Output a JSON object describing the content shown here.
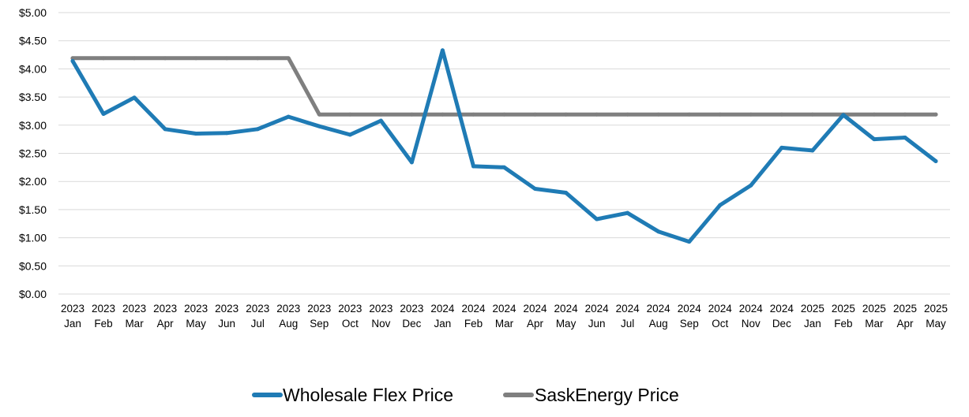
{
  "chart_data": {
    "type": "line",
    "title": "",
    "xlabel": "",
    "ylabel": "",
    "ylim": [
      0,
      5
    ],
    "y_ticks": [
      "$0.00",
      "$0.50",
      "$1.00",
      "$1.50",
      "$2.00",
      "$2.50",
      "$3.00",
      "$3.50",
      "$4.00",
      "$4.50",
      "$5.00"
    ],
    "y_tick_values": [
      0,
      0.5,
      1,
      1.5,
      2,
      2.5,
      3,
      3.5,
      4,
      4.5,
      5
    ],
    "grid": true,
    "legend_position": "bottom",
    "categories": [
      {
        "year": "2023",
        "month": "Jan"
      },
      {
        "year": "2023",
        "month": "Feb"
      },
      {
        "year": "2023",
        "month": "Mar"
      },
      {
        "year": "2023",
        "month": "Apr"
      },
      {
        "year": "2023",
        "month": "May"
      },
      {
        "year": "2023",
        "month": "Jun"
      },
      {
        "year": "2023",
        "month": "Jul"
      },
      {
        "year": "2023",
        "month": "Aug"
      },
      {
        "year": "2023",
        "month": "Sep"
      },
      {
        "year": "2023",
        "month": "Oct"
      },
      {
        "year": "2023",
        "month": "Nov"
      },
      {
        "year": "2023",
        "month": "Dec"
      },
      {
        "year": "2024",
        "month": "Jan"
      },
      {
        "year": "2024",
        "month": "Feb"
      },
      {
        "year": "2024",
        "month": "Mar"
      },
      {
        "year": "2024",
        "month": "Apr"
      },
      {
        "year": "2024",
        "month": "May"
      },
      {
        "year": "2024",
        "month": "Jun"
      },
      {
        "year": "2024",
        "month": "Jul"
      },
      {
        "year": "2024",
        "month": "Aug"
      },
      {
        "year": "2024",
        "month": "Sep"
      },
      {
        "year": "2024",
        "month": "Oct"
      },
      {
        "year": "2024",
        "month": "Nov"
      },
      {
        "year": "2024",
        "month": "Dec"
      },
      {
        "year": "2025",
        "month": "Jan"
      },
      {
        "year": "2025",
        "month": "Feb"
      },
      {
        "year": "2025",
        "month": "Mar"
      },
      {
        "year": "2025",
        "month": "Apr"
      },
      {
        "year": "2025",
        "month": "May"
      }
    ],
    "series": [
      {
        "name": "Wholesale Flex Price",
        "color": "#1f7bb5",
        "values": [
          4.14,
          3.2,
          3.49,
          2.93,
          2.85,
          2.86,
          2.93,
          3.15,
          2.98,
          2.83,
          3.08,
          2.34,
          4.33,
          2.27,
          2.25,
          1.87,
          1.8,
          1.33,
          1.44,
          1.11,
          0.93,
          1.58,
          1.93,
          2.6,
          2.55,
          3.18,
          2.75,
          2.78,
          2.36
        ]
      },
      {
        "name": "SaskEnergy Price",
        "color": "#7f7f7f",
        "values": [
          4.19,
          4.19,
          4.19,
          4.19,
          4.19,
          4.19,
          4.19,
          4.19,
          3.19,
          3.19,
          3.19,
          3.19,
          3.19,
          3.19,
          3.19,
          3.19,
          3.19,
          3.19,
          3.19,
          3.19,
          3.19,
          3.19,
          3.19,
          3.19,
          3.19,
          3.19,
          3.19,
          3.19,
          3.19
        ]
      }
    ]
  }
}
